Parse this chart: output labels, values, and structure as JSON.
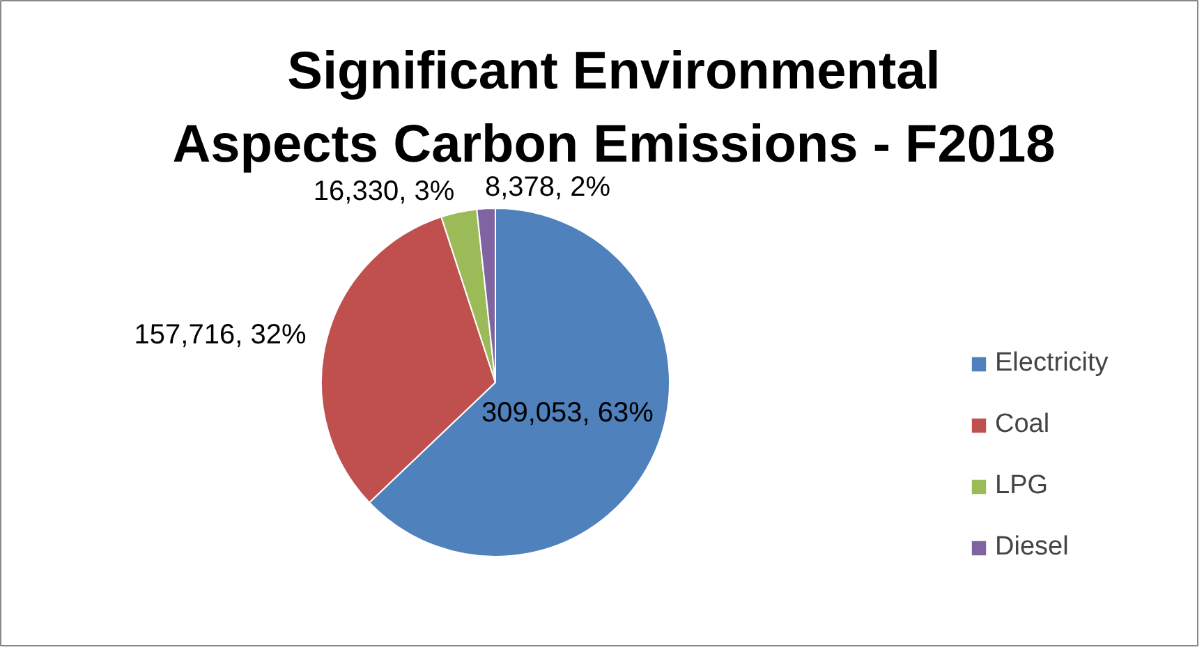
{
  "chart_data": {
    "type": "pie",
    "title": "Significant Environmental\nAspects Carbon Emissions - F2018",
    "categories": [
      "Electricity",
      "Coal",
      "LPG",
      "Diesel"
    ],
    "values": [
      309053,
      157716,
      16330,
      8378
    ],
    "colors": [
      "#4f81bd",
      "#c0504d",
      "#9bbb59",
      "#8064a2"
    ],
    "value_labels": [
      "309,053, 63%",
      "157,716, 32%",
      "16,330, 3%",
      "8,378, 2%"
    ],
    "legend": "right"
  }
}
